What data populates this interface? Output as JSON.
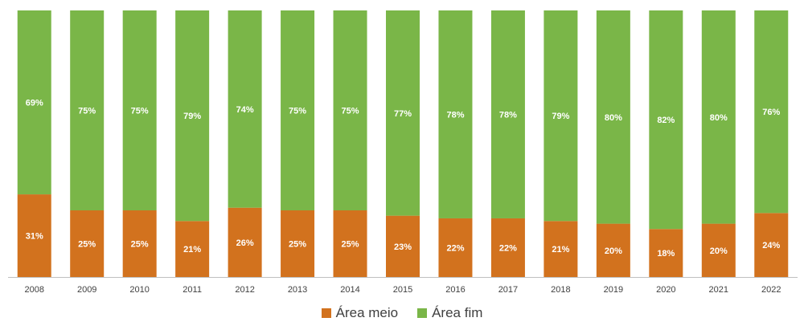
{
  "colors": {
    "meio": "#D2721E",
    "fim": "#7AB648",
    "axis": "#bfbfbf"
  },
  "chart_data": {
    "type": "bar",
    "stacked": true,
    "percent": true,
    "categories": [
      "2008",
      "2009",
      "2010",
      "2011",
      "2012",
      "2013",
      "2014",
      "2015",
      "2016",
      "2017",
      "2018",
      "2019",
      "2020",
      "2021",
      "2022"
    ],
    "series": [
      {
        "name": "Área meio",
        "values": [
          31,
          25,
          25,
          21,
          26,
          25,
          25,
          23,
          22,
          22,
          21,
          20,
          18,
          20,
          24
        ]
      },
      {
        "name": "Área fim",
        "values": [
          69,
          75,
          75,
          79,
          74,
          75,
          75,
          77,
          78,
          78,
          79,
          80,
          82,
          80,
          76
        ]
      }
    ],
    "ylim": [
      0,
      100
    ],
    "legend_position": "bottom"
  }
}
